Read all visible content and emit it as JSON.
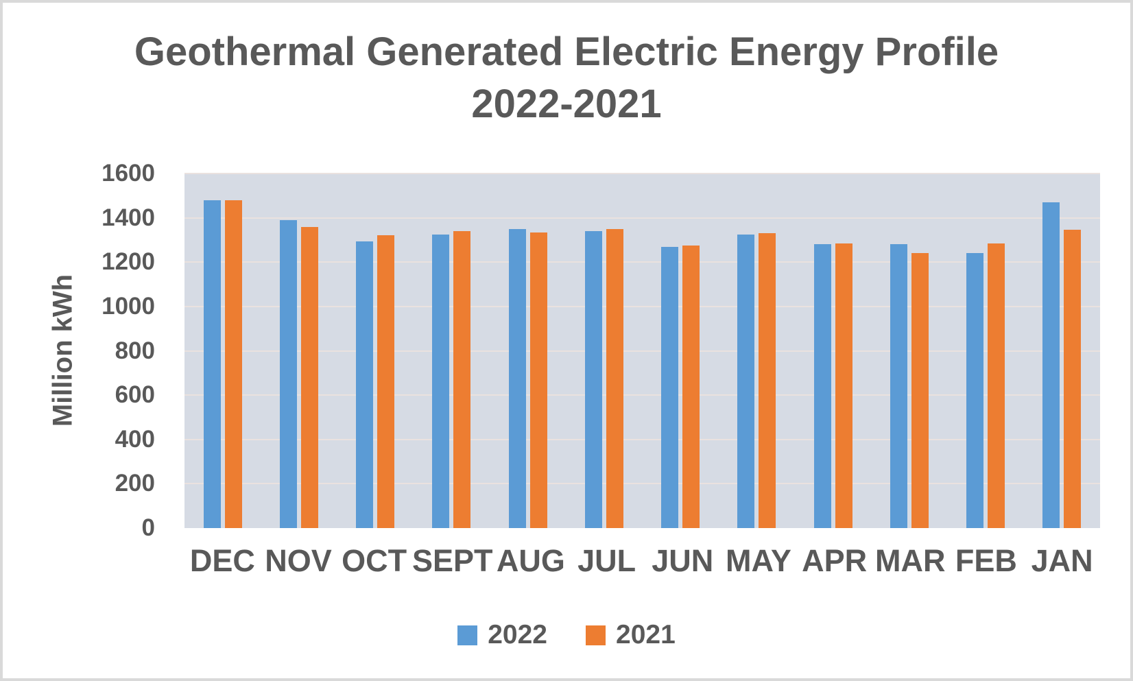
{
  "chart_data": {
    "type": "bar",
    "title": "Geothermal Generated Electric Energy Profile",
    "subtitle": "2022-2021",
    "ylabel": "Million kWh",
    "ylim": [
      0,
      1600
    ],
    "yticks": [
      0,
      200,
      400,
      600,
      800,
      1000,
      1200,
      1400,
      1600
    ],
    "grid": true,
    "legend_position": "bottom",
    "plot_background": "#D6DBE4",
    "gridline_color": "#EAE2DF",
    "text_color": "#595959",
    "categories": [
      "DEC",
      "NOV",
      "OCT",
      "SEPT",
      "AUG",
      "JUL",
      "JUN",
      "MAY",
      "APR",
      "MAR",
      "FEB",
      "JAN"
    ],
    "series": [
      {
        "name": "2022",
        "color": "#5B9BD5",
        "values": [
          1480,
          1390,
          1295,
          1325,
          1350,
          1340,
          1270,
          1325,
          1280,
          1280,
          1240,
          1470
        ]
      },
      {
        "name": "2021",
        "color": "#ED7D31",
        "values": [
          1480,
          1360,
          1320,
          1340,
          1335,
          1350,
          1275,
          1330,
          1285,
          1240,
          1285,
          1345
        ]
      }
    ]
  }
}
